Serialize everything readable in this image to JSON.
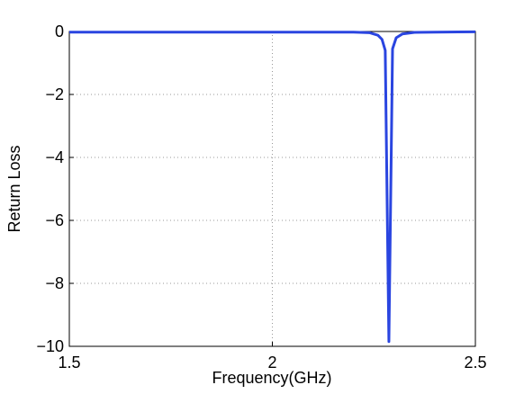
{
  "chart_data": {
    "type": "line",
    "xlabel": "Frequency(GHz)",
    "ylabel": "Return Loss",
    "x": [
      1.5,
      1.6,
      1.7,
      1.8,
      1.9,
      2.0,
      2.1,
      2.2,
      2.24,
      2.26,
      2.27,
      2.278,
      2.287,
      2.296,
      2.305,
      2.32,
      2.35,
      2.4,
      2.5
    ],
    "series": [
      {
        "color": "#2a45e0",
        "values": [
          -0.02,
          -0.02,
          -0.02,
          -0.02,
          -0.02,
          -0.02,
          -0.02,
          -0.02,
          -0.04,
          -0.12,
          -0.25,
          -0.6,
          -9.85,
          -0.55,
          -0.2,
          -0.08,
          -0.03,
          -0.02,
          -0.01
        ]
      }
    ],
    "xlim": [
      1.5,
      2.5
    ],
    "xticks": [
      1.5,
      2,
      2.5
    ],
    "ylim": [
      -10,
      0
    ],
    "yticks": [
      {
        "value": -10,
        "label": "−10"
      },
      {
        "value": -8,
        "label": "−8"
      },
      {
        "value": -6,
        "label": "−6"
      },
      {
        "value": -4,
        "label": "−4"
      },
      {
        "value": -2,
        "label": "−2"
      },
      0
    ],
    "grid": true
  }
}
